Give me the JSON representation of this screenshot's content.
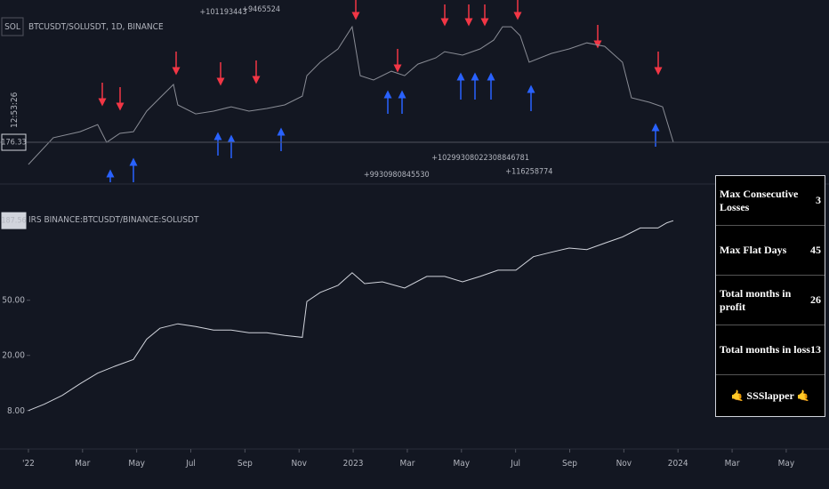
{
  "chart_data": [
    {
      "type": "line",
      "symbol": "SOL",
      "title": "BTCUSDT/SOLUSDT, 1D, BINANCE",
      "countdown": "12:53:26",
      "xlim": [
        -1.05,
        29.58
      ],
      "ylim": [
        150,
        270
      ],
      "series": [
        {
          "color": "#8a8d96",
          "x": [
            0,
            0.92,
            1.91,
            2.56,
            2.89,
            3.38,
            3.88,
            4.37,
            4.86,
            5.36,
            5.52,
            6.18,
            6.84,
            7.49,
            8.15,
            8.81,
            9.47,
            10.12,
            10.29,
            10.78,
            11.44,
            11.96,
            12.26,
            12.75,
            13.41,
            13.9,
            14.39,
            15.05,
            15.38,
            16.04,
            16.69,
            17.19,
            17.52,
            17.84,
            18.17,
            18.5,
            19.32,
            19.98,
            20.63,
            21.29,
            21.95,
            22.28,
            22.94,
            23.43,
            23.83
          ],
          "values": [
            161.7,
            179.3,
            183.3,
            188.0,
            176.3,
            182.2,
            183.3,
            196.8,
            205.6,
            214.4,
            200.9,
            195.0,
            196.8,
            199.7,
            196.8,
            198.6,
            200.9,
            206.7,
            220.2,
            229.0,
            237.8,
            252.4,
            220.2,
            217.3,
            223.1,
            220.2,
            227.8,
            231.9,
            236.0,
            233.7,
            237.8,
            243.6,
            252.4,
            252.4,
            246.5,
            229.0,
            234.8,
            237.8,
            241.8,
            239.5,
            229.0,
            205.6,
            202.7,
            199.7,
            176.33
          ]
        }
      ],
      "annotations": [
        {
          "text": "+101193443",
          "x": 7.2,
          "y": 262
        },
        {
          "text": "+9465524",
          "x": 8.6,
          "y": 264
        },
        {
          "text": "+9930980845530",
          "x": 13.6,
          "y": 155
        },
        {
          "text": "+10299308022308846781",
          "x": 16.7,
          "y": 166
        },
        {
          "text": "+116258774",
          "x": 18.5,
          "y": 157
        }
      ]
    },
    {
      "type": "line",
      "title": "IRS BINANCE:BTCUSDT/BINANCE:SOLUSDT",
      "log_scale": true,
      "xlim": [
        -1.05,
        29.58
      ],
      "ylim": [
        4.9,
        306
      ],
      "yticks": [
        {
          "value": 8,
          "label": "8.00"
        },
        {
          "value": 20,
          "label": "20.00"
        },
        {
          "value": 50,
          "label": "50.00"
        }
      ],
      "xticks": [
        {
          "value": 0,
          "label": "'22"
        },
        {
          "value": 2,
          "label": "Mar"
        },
        {
          "value": 4,
          "label": "May"
        },
        {
          "value": 6,
          "label": "Jul"
        },
        {
          "value": 8,
          "label": "Sep"
        },
        {
          "value": 10,
          "label": "Nov"
        },
        {
          "value": 12,
          "label": "2023"
        },
        {
          "value": 14,
          "label": "Mar"
        },
        {
          "value": 16,
          "label": "May"
        },
        {
          "value": 18,
          "label": "Jul"
        },
        {
          "value": 20,
          "label": "Sep"
        },
        {
          "value": 22,
          "label": "Nov"
        },
        {
          "value": 24,
          "label": "2024"
        },
        {
          "value": 26,
          "label": "Mar"
        },
        {
          "value": 28,
          "label": "May"
        }
      ],
      "series": [
        {
          "color": "#d1d4dc",
          "x": [
            0,
            0.59,
            1.25,
            1.91,
            2.56,
            3.22,
            3.88,
            4.37,
            4.86,
            5.52,
            6.18,
            6.84,
            7.49,
            8.15,
            8.81,
            9.47,
            10.12,
            10.29,
            10.78,
            11.44,
            11.96,
            12.42,
            13.08,
            13.9,
            14.72,
            15.38,
            16.04,
            16.69,
            17.35,
            18.01,
            18.66,
            19.32,
            19.98,
            20.63,
            21.29,
            21.95,
            22.61,
            23.26,
            23.59,
            23.83
          ],
          "values": [
            8.0,
            8.9,
            10.3,
            12.5,
            14.9,
            16.8,
            18.7,
            26.2,
            31.4,
            33.8,
            32.3,
            30.5,
            30.5,
            29.1,
            29.1,
            27.9,
            27.0,
            49,
            56.9,
            64,
            78.9,
            65.9,
            67.9,
            61.2,
            74.3,
            74.3,
            67.9,
            74.3,
            82.4,
            82.4,
            103,
            111,
            119,
            116,
            129,
            143,
            166,
            166,
            181,
            187.56
          ]
        }
      ]
    }
  ],
  "table": {
    "rows": [
      [
        "Max Consecutive Losses",
        "3"
      ],
      [
        "Max Flat Days",
        "45"
      ],
      [
        "Total months in profit",
        "26"
      ],
      [
        "Total months in loss",
        "13"
      ]
    ],
    "footer": "🤙 SSSlapper 🤙"
  }
}
